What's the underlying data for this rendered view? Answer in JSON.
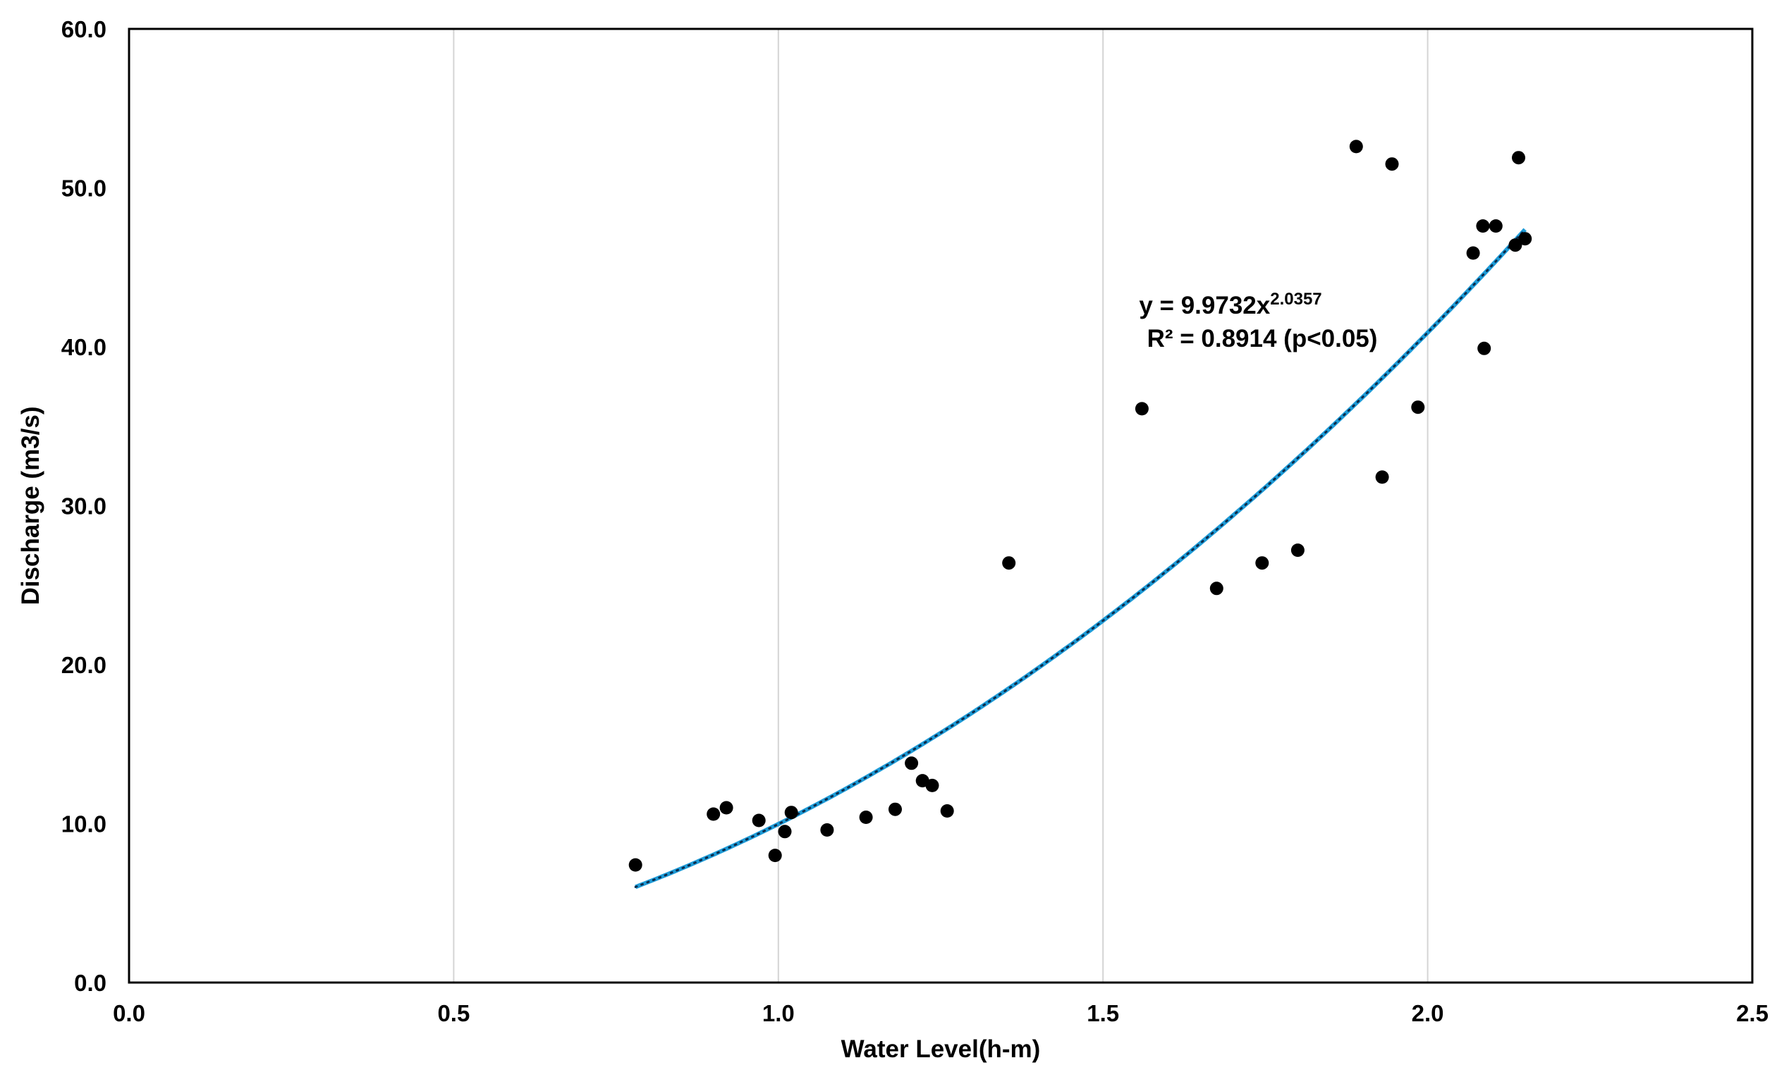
{
  "chart_data": {
    "type": "scatter",
    "xlabel": "Water Level(h-m)",
    "ylabel": "Discharge (m3/s)",
    "xlim": [
      0.0,
      2.5
    ],
    "ylim": [
      0.0,
      60.0
    ],
    "x_ticks": [
      "0.0",
      "0.5",
      "1.0",
      "1.5",
      "2.0",
      "2.5"
    ],
    "y_ticks": [
      "0.0",
      "10.0",
      "20.0",
      "30.0",
      "40.0",
      "50.0",
      "60.0"
    ],
    "x_tick_values": [
      0.0,
      0.5,
      1.0,
      1.5,
      2.0,
      2.5
    ],
    "y_tick_values": [
      0.0,
      10.0,
      20.0,
      30.0,
      40.0,
      50.0,
      60.0
    ],
    "grid": "vertical",
    "marker_color": "#000000",
    "trendline": {
      "type": "power",
      "coefficient": 9.9732,
      "exponent": 2.0357,
      "x_range": [
        0.78,
        2.15
      ],
      "color": "#1e9bd7",
      "equation_prefix": "y = 9.9732x",
      "equation_exponent": "2.0357",
      "r2_text": "R² = 0.8914 (p<0.05)"
    },
    "points": [
      {
        "x": 0.78,
        "y": 7.4
      },
      {
        "x": 0.9,
        "y": 10.6
      },
      {
        "x": 0.92,
        "y": 11.0
      },
      {
        "x": 0.97,
        "y": 10.2
      },
      {
        "x": 0.995,
        "y": 8.0
      },
      {
        "x": 1.01,
        "y": 9.5
      },
      {
        "x": 1.02,
        "y": 10.7
      },
      {
        "x": 1.075,
        "y": 9.6
      },
      {
        "x": 1.135,
        "y": 10.4
      },
      {
        "x": 1.18,
        "y": 10.9
      },
      {
        "x": 1.205,
        "y": 13.8
      },
      {
        "x": 1.222,
        "y": 12.7
      },
      {
        "x": 1.237,
        "y": 12.4
      },
      {
        "x": 1.26,
        "y": 10.8
      },
      {
        "x": 1.355,
        "y": 26.4
      },
      {
        "x": 1.56,
        "y": 36.1
      },
      {
        "x": 1.675,
        "y": 24.8
      },
      {
        "x": 1.745,
        "y": 26.4
      },
      {
        "x": 1.8,
        "y": 27.2
      },
      {
        "x": 1.89,
        "y": 52.6
      },
      {
        "x": 1.93,
        "y": 31.8
      },
      {
        "x": 1.945,
        "y": 51.5
      },
      {
        "x": 1.985,
        "y": 36.2
      },
      {
        "x": 2.07,
        "y": 45.9
      },
      {
        "x": 2.085,
        "y": 47.6
      },
      {
        "x": 2.087,
        "y": 39.9
      },
      {
        "x": 2.105,
        "y": 47.6
      },
      {
        "x": 2.135,
        "y": 46.4
      },
      {
        "x": 2.14,
        "y": 51.9
      },
      {
        "x": 2.15,
        "y": 46.8
      }
    ]
  }
}
